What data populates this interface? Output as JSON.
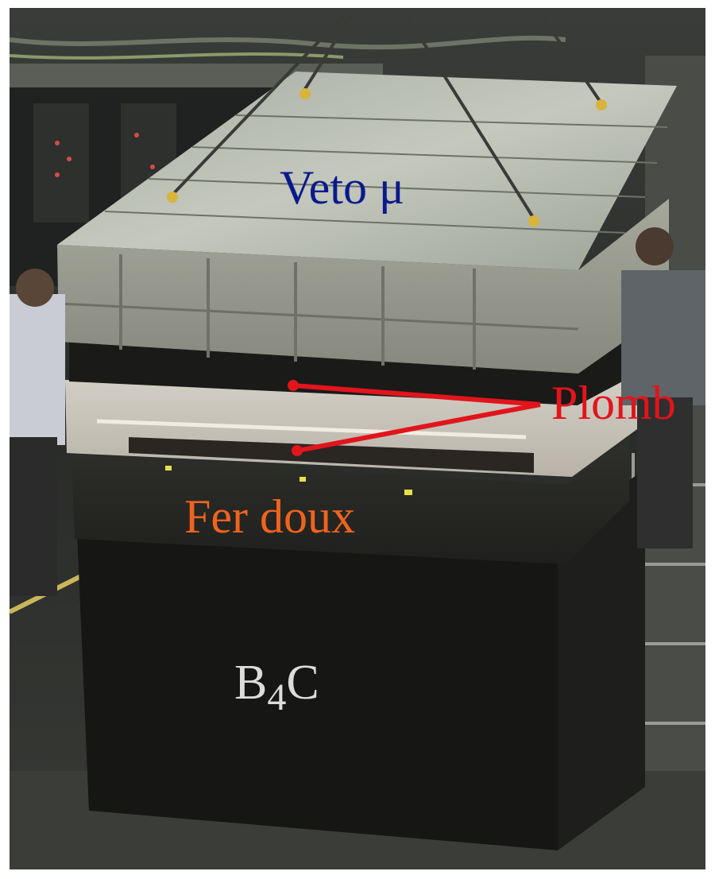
{
  "labels": {
    "veto": "Veto μ",
    "plomb": "Plomb",
    "fer_doux": "Fer doux",
    "b4c_main": "B",
    "b4c_sub": "4",
    "b4c_end": "C"
  },
  "colors": {
    "veto": "#0a1a8c",
    "plomb": "#e2141c",
    "fer_doux": "#f0631e",
    "b4c": "#dcdcdc",
    "pointer": "#e2141c"
  }
}
